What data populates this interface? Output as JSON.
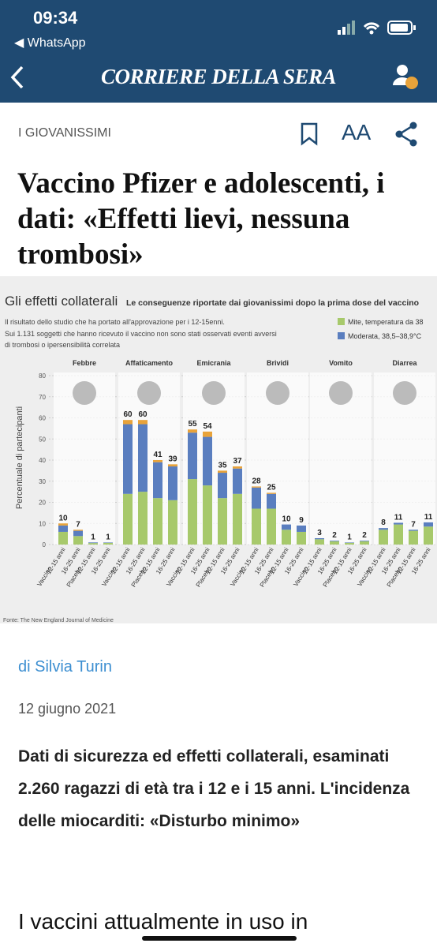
{
  "status": {
    "time": "09:34",
    "back_app": "◀ WhatsApp"
  },
  "nav": {
    "brand": "CORRIERE DELLA SERA"
  },
  "article": {
    "section": "I GIOVANISSIMI",
    "text_size": "AA",
    "headline": "Vaccino Pfizer e adolescenti, i dati: «Effetti lievi, nessuna trombosi»",
    "author": "di Silvia Turin",
    "date": "12 giugno 2021",
    "summary": "Dati di sicurezza ed effetti collaterali, esaminati 2.260 ragazzi di età tra i 12 e i 15 anni. L'incidenza delle miocarditi: «Disturbo minimo»",
    "body_start": "I vaccini attualmente in uso in"
  },
  "chart_data": {
    "type": "bar",
    "stacked": true,
    "title": "Gli effetti collaterali",
    "subtitle": "Le conseguenze riportate dai giovanissimi dopo la prima dose del vaccino",
    "notes": [
      "Il risultato dello studio che ha portato all'approvazione per i 12-15enni.",
      "Sui 1.131 soggetti che hanno ricevuto il vaccino non sono stati osservati eventi avversi",
      "di trombosi o ipersensibilità correlata"
    ],
    "source": "Fonte: The New England Journal of Medicine",
    "y_label": "Percentuale di partecipanti",
    "groups": [
      "Febbre",
      "Affaticamento",
      "Emicrania",
      "Brividi",
      "Vomito",
      "Diarrea"
    ],
    "arms": [
      "Vaccino",
      "Placebo"
    ],
    "bar_labels": [
      "12-15 anni",
      "16-25 anni",
      "12-15 anni",
      "16-25 anni"
    ],
    "ylim": [
      0,
      80
    ],
    "yticks": [
      0,
      10,
      20,
      30,
      40,
      50,
      60,
      70,
      80
    ],
    "grid": true,
    "series": [
      {
        "name": "Mite, temperatura da 38",
        "color": "#a7c96b",
        "values": [
          6,
          4,
          0.7,
          0.8,
          24,
          25,
          22,
          21,
          31,
          28,
          22,
          24,
          17,
          17,
          7,
          6,
          2.5,
          1.5,
          0.8,
          1.5,
          7,
          9.5,
          6.5,
          8.5
        ]
      },
      {
        "name": "Moderata, 38,5–38,9°C",
        "color": "#5a7ebf",
        "values": [
          3,
          2.5,
          0.3,
          0.2,
          33,
          32,
          17,
          16,
          22,
          23,
          12,
          12,
          10,
          7,
          2.5,
          3,
          0.5,
          0.3,
          0.2,
          0.3,
          0.8,
          0.8,
          0.5,
          2
        ]
      },
      {
        "color": "#e8a33a",
        "values": [
          1,
          0.5,
          0,
          0,
          2,
          2,
          1,
          1,
          1.5,
          2.5,
          1,
          1,
          0.5,
          0.5,
          0,
          0,
          0,
          0,
          0,
          0,
          0,
          0,
          0,
          0
        ]
      }
    ],
    "totals": [
      10,
      7,
      1,
      1,
      60,
      60,
      41,
      39,
      55,
      54,
      35,
      37,
      28,
      25,
      10,
      9,
      3,
      2,
      1,
      2,
      8,
      11,
      7,
      11
    ]
  }
}
